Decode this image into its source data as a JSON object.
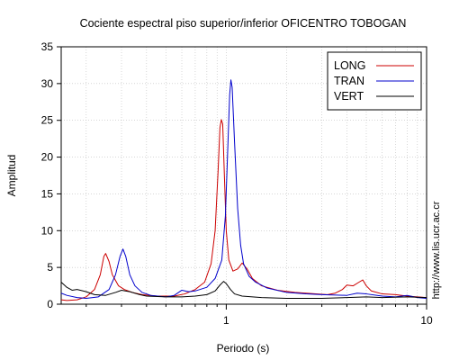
{
  "chart_data": {
    "type": "line",
    "title": "Cociente espectral piso superior/inferior OFICENTRO TOBOGAN",
    "xlabel": "Periodo (s)",
    "ylabel": "Amplitud",
    "xscale": "log",
    "xlim": [
      0.15,
      10
    ],
    "ylim": [
      0,
      35
    ],
    "x_tick_labels": [
      {
        "value": 1,
        "label": "1"
      },
      {
        "value": 10,
        "label": "10"
      }
    ],
    "y_ticks": [
      0,
      5,
      10,
      15,
      20,
      25,
      30,
      35
    ],
    "y_tick_labels": [
      "0",
      "5",
      "10",
      "15",
      "20",
      "25",
      "30",
      "35"
    ],
    "grid": true,
    "legend_position": "top-right",
    "side_text": "http://www.lis.ucr.ac.cr",
    "series": [
      {
        "name": "LONG",
        "color": "#cc0000",
        "points": [
          [
            0.15,
            0.6
          ],
          [
            0.16,
            0.5
          ],
          [
            0.18,
            0.6
          ],
          [
            0.2,
            1.0
          ],
          [
            0.22,
            2.0
          ],
          [
            0.235,
            4.0
          ],
          [
            0.245,
            6.5
          ],
          [
            0.25,
            6.9
          ],
          [
            0.26,
            5.8
          ],
          [
            0.27,
            4.0
          ],
          [
            0.29,
            2.5
          ],
          [
            0.31,
            2.0
          ],
          [
            0.34,
            1.6
          ],
          [
            0.38,
            1.3
          ],
          [
            0.45,
            1.1
          ],
          [
            0.55,
            1.1
          ],
          [
            0.62,
            1.4
          ],
          [
            0.7,
            2.0
          ],
          [
            0.78,
            3.0
          ],
          [
            0.84,
            5.5
          ],
          [
            0.88,
            10.0
          ],
          [
            0.91,
            18.0
          ],
          [
            0.93,
            24.0
          ],
          [
            0.945,
            25.1
          ],
          [
            0.96,
            24.5
          ],
          [
            0.98,
            17.0
          ],
          [
            1.0,
            10.0
          ],
          [
            1.03,
            6.0
          ],
          [
            1.08,
            4.5
          ],
          [
            1.14,
            4.8
          ],
          [
            1.2,
            5.6
          ],
          [
            1.27,
            4.8
          ],
          [
            1.35,
            3.5
          ],
          [
            1.5,
            2.5
          ],
          [
            1.8,
            1.9
          ],
          [
            2.2,
            1.6
          ],
          [
            2.8,
            1.4
          ],
          [
            3.2,
            1.3
          ],
          [
            3.5,
            1.5
          ],
          [
            3.8,
            2.0
          ],
          [
            4.0,
            2.6
          ],
          [
            4.3,
            2.5
          ],
          [
            4.6,
            3.0
          ],
          [
            4.8,
            3.3
          ],
          [
            5.0,
            2.5
          ],
          [
            5.3,
            1.8
          ],
          [
            6.0,
            1.4
          ],
          [
            7.0,
            1.3
          ],
          [
            8.0,
            1.1
          ],
          [
            9.0,
            1.0
          ],
          [
            10.0,
            0.9
          ]
        ]
      },
      {
        "name": "TRAN",
        "color": "#0000cc",
        "points": [
          [
            0.15,
            1.5
          ],
          [
            0.16,
            1.2
          ],
          [
            0.18,
            0.9
          ],
          [
            0.2,
            0.8
          ],
          [
            0.23,
            1.0
          ],
          [
            0.26,
            2.0
          ],
          [
            0.28,
            4.0
          ],
          [
            0.295,
            6.5
          ],
          [
            0.305,
            7.5
          ],
          [
            0.315,
            6.5
          ],
          [
            0.33,
            4.0
          ],
          [
            0.35,
            2.5
          ],
          [
            0.38,
            1.6
          ],
          [
            0.42,
            1.2
          ],
          [
            0.5,
            1.0
          ],
          [
            0.55,
            1.2
          ],
          [
            0.6,
            1.9
          ],
          [
            0.65,
            1.7
          ],
          [
            0.7,
            1.8
          ],
          [
            0.8,
            2.3
          ],
          [
            0.88,
            3.5
          ],
          [
            0.95,
            6.0
          ],
          [
            0.99,
            12.0
          ],
          [
            1.02,
            22.0
          ],
          [
            1.04,
            28.5
          ],
          [
            1.055,
            30.5
          ],
          [
            1.07,
            29.5
          ],
          [
            1.1,
            22.0
          ],
          [
            1.14,
            13.0
          ],
          [
            1.18,
            8.0
          ],
          [
            1.22,
            5.5
          ],
          [
            1.3,
            3.8
          ],
          [
            1.4,
            3.0
          ],
          [
            1.6,
            2.2
          ],
          [
            2.0,
            1.6
          ],
          [
            2.5,
            1.4
          ],
          [
            3.0,
            1.3
          ],
          [
            4.0,
            1.2
          ],
          [
            4.5,
            1.5
          ],
          [
            5.0,
            1.4
          ],
          [
            6.0,
            1.1
          ],
          [
            7.0,
            1.0
          ],
          [
            8.0,
            1.2
          ],
          [
            9.0,
            0.9
          ],
          [
            10.0,
            0.8
          ]
        ]
      },
      {
        "name": "VERT",
        "color": "#000000",
        "points": [
          [
            0.15,
            3.0
          ],
          [
            0.16,
            2.3
          ],
          [
            0.17,
            1.9
          ],
          [
            0.18,
            2.0
          ],
          [
            0.2,
            1.7
          ],
          [
            0.22,
            1.3
          ],
          [
            0.25,
            1.2
          ],
          [
            0.28,
            1.6
          ],
          [
            0.3,
            1.9
          ],
          [
            0.33,
            1.7
          ],
          [
            0.37,
            1.3
          ],
          [
            0.4,
            1.1
          ],
          [
            0.5,
            1.0
          ],
          [
            0.6,
            1.0
          ],
          [
            0.7,
            1.1
          ],
          [
            0.8,
            1.3
          ],
          [
            0.88,
            1.8
          ],
          [
            0.93,
            2.6
          ],
          [
            0.97,
            3.1
          ],
          [
            1.0,
            2.8
          ],
          [
            1.05,
            2.0
          ],
          [
            1.1,
            1.4
          ],
          [
            1.2,
            1.1
          ],
          [
            1.5,
            0.9
          ],
          [
            2.0,
            0.8
          ],
          [
            3.0,
            0.8
          ],
          [
            4.0,
            0.9
          ],
          [
            5.0,
            1.0
          ],
          [
            6.0,
            0.9
          ],
          [
            8.0,
            1.0
          ],
          [
            10.0,
            0.9
          ]
        ]
      }
    ]
  }
}
